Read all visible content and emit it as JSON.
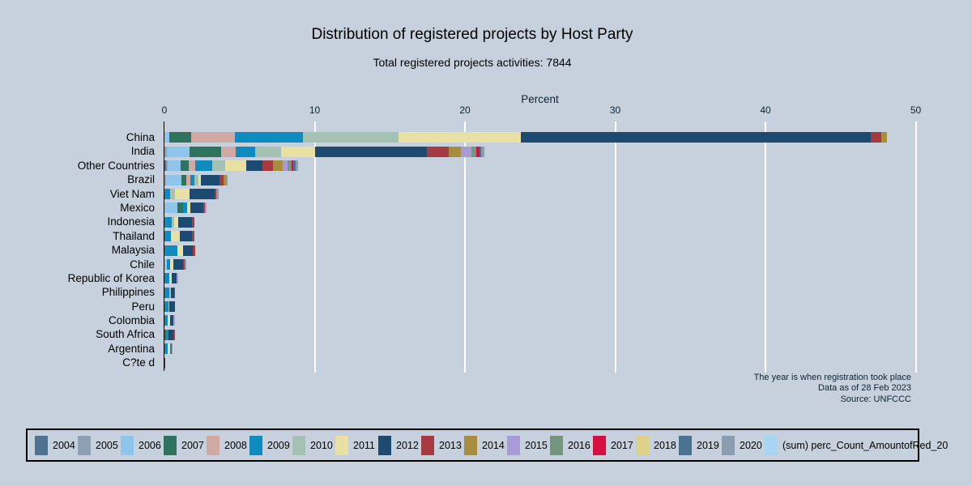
{
  "background": "#c6d1dd",
  "chart_data": {
    "type": "bar",
    "orientation": "horizontal-stacked",
    "title": "Distribution of registered projects by Host Party",
    "subtitle": "Total registered projects activities: 7844",
    "xlabel": "Percent",
    "xlim": [
      0,
      50
    ],
    "x_ticks": [
      0,
      10,
      20,
      30,
      40,
      50
    ],
    "grid": "white vertical gridlines at each tick",
    "legend_position": "bottom",
    "colors": {
      "2004": "#4d7391",
      "2005": "#8fa0b4",
      "2006": "#8ec5ec",
      "2007": "#2f735f",
      "2008": "#d2a8a3",
      "2009": "#0e8cbf",
      "2010": "#a4c2b3",
      "2011": "#e8e1a3",
      "2012": "#1d4a70",
      "2013": "#a53b41",
      "2014": "#a68e3e",
      "2015": "#a89bd8",
      "2016": "#74967f",
      "2017": "#d50f3f",
      "2018": "#ddd189",
      "2019": "#4a7392",
      "2020": "#8c9db1",
      "sum": "#a7d5f3"
    },
    "legend_entries": [
      {
        "key": "2004",
        "label": "2004"
      },
      {
        "key": "2005",
        "label": "2005"
      },
      {
        "key": "2006",
        "label": "2006"
      },
      {
        "key": "2007",
        "label": "2007"
      },
      {
        "key": "2008",
        "label": "2008"
      },
      {
        "key": "2009",
        "label": "2009"
      },
      {
        "key": "2010",
        "label": "2010"
      },
      {
        "key": "2011",
        "label": "2011"
      },
      {
        "key": "2012",
        "label": "2012"
      },
      {
        "key": "2013",
        "label": "2013"
      },
      {
        "key": "2014",
        "label": "2014"
      },
      {
        "key": "2015",
        "label": "2015"
      },
      {
        "key": "2016",
        "label": "2016"
      },
      {
        "key": "2017",
        "label": "2017"
      },
      {
        "key": "2018",
        "label": "2018"
      },
      {
        "key": "2019",
        "label": "2019"
      },
      {
        "key": "2020",
        "label": "2020"
      },
      {
        "key": "sum",
        "label": "(sum) perc_Count_AmountofRed_20"
      }
    ],
    "rows": [
      {
        "label": "China",
        "total_pct": 48.1,
        "segments": [
          [
            "2006",
            0.3
          ],
          [
            "2007",
            1.5
          ],
          [
            "2008",
            2.9
          ],
          [
            "2009",
            4.5
          ],
          [
            "2010",
            6.4
          ],
          [
            "2011",
            8.1
          ],
          [
            "2012",
            23.3
          ],
          [
            "2013",
            0.7
          ],
          [
            "2014",
            0.4
          ]
        ]
      },
      {
        "label": "India",
        "total_pct": 21.3,
        "segments": [
          [
            "2005",
            0.15
          ],
          [
            "2006",
            1.5
          ],
          [
            "2007",
            2.1
          ],
          [
            "2008",
            1.0
          ],
          [
            "2009",
            1.3
          ],
          [
            "2010",
            1.7
          ],
          [
            "2011",
            2.3
          ],
          [
            "2012",
            7.4
          ],
          [
            "2013",
            1.45
          ],
          [
            "2014",
            0.85
          ],
          [
            "2015",
            0.7
          ],
          [
            "2016",
            0.3
          ],
          [
            "2017",
            0.25
          ],
          [
            "2019",
            0.1
          ],
          [
            "2020",
            0.2
          ]
        ]
      },
      {
        "label": "Other Countries",
        "total_pct": 8.9,
        "segments": [
          [
            "2004",
            0.1
          ],
          [
            "2005",
            0.1
          ],
          [
            "2006",
            0.9
          ],
          [
            "2007",
            0.5
          ],
          [
            "2008",
            0.45
          ],
          [
            "2009",
            1.15
          ],
          [
            "2010",
            0.85
          ],
          [
            "2011",
            1.4
          ],
          [
            "2012",
            1.1
          ],
          [
            "2013",
            0.7
          ],
          [
            "2014",
            0.65
          ],
          [
            "2015",
            0.3
          ],
          [
            "2016",
            0.25
          ],
          [
            "2017",
            0.15
          ],
          [
            "2019",
            0.15
          ],
          [
            "2020",
            0.15
          ]
        ]
      },
      {
        "label": "Brazil",
        "total_pct": 4.2,
        "segments": [
          [
            "2005",
            0.1
          ],
          [
            "2006",
            1.05
          ],
          [
            "2007",
            0.3
          ],
          [
            "2008",
            0.3
          ],
          [
            "2009",
            0.27
          ],
          [
            "2010",
            0.27
          ],
          [
            "2011",
            0.16
          ],
          [
            "2012",
            1.2
          ],
          [
            "2013",
            0.27
          ],
          [
            "2014",
            0.16
          ],
          [
            "2020",
            0.11
          ]
        ]
      },
      {
        "label": "Viet Nam",
        "total_pct": 3.6,
        "segments": [
          [
            "2009",
            0.38
          ],
          [
            "2010",
            0.32
          ],
          [
            "2011",
            0.95
          ],
          [
            "2012",
            1.7
          ],
          [
            "2013",
            0.1
          ],
          [
            "2020",
            0.16
          ]
        ]
      },
      {
        "label": "Mexico",
        "total_pct": 2.8,
        "segments": [
          [
            "2006",
            0.86
          ],
          [
            "2007",
            0.38
          ],
          [
            "2009",
            0.27
          ],
          [
            "2011",
            0.2
          ],
          [
            "2012",
            0.86
          ],
          [
            "2013",
            0.11
          ],
          [
            "2015",
            0.11
          ]
        ]
      },
      {
        "label": "Indonesia",
        "total_pct": 2.0,
        "segments": [
          [
            "2009",
            0.5
          ],
          [
            "2010",
            0.16
          ],
          [
            "2011",
            0.27
          ],
          [
            "2012",
            0.9
          ],
          [
            "2013",
            0.16
          ]
        ]
      },
      {
        "label": "Thailand",
        "total_pct": 2.0,
        "segments": [
          [
            "2009",
            0.43
          ],
          [
            "2011",
            0.6
          ],
          [
            "2012",
            0.8
          ],
          [
            "2013",
            0.16
          ]
        ]
      },
      {
        "label": "Malaysia",
        "total_pct": 2.0,
        "segments": [
          [
            "2009",
            0.85
          ],
          [
            "2011",
            0.38
          ],
          [
            "2012",
            0.65
          ],
          [
            "2013",
            0.16
          ]
        ]
      },
      {
        "label": "Chile",
        "total_pct": 1.45,
        "segments": [
          [
            "2006",
            0.16
          ],
          [
            "2009",
            0.22
          ],
          [
            "2011",
            0.22
          ],
          [
            "2012",
            0.65
          ],
          [
            "2013",
            0.11
          ],
          [
            "2020",
            0.11
          ]
        ]
      },
      {
        "label": "Republic of Korea",
        "total_pct": 0.9,
        "segments": [
          [
            "2009",
            0.32
          ],
          [
            "2011",
            0.16
          ],
          [
            "2012",
            0.32
          ],
          [
            "2015",
            0.11
          ]
        ]
      },
      {
        "label": "Philippines",
        "total_pct": 0.7,
        "segments": [
          [
            "2009",
            0.32
          ],
          [
            "2010",
            0.11
          ],
          [
            "2012",
            0.22
          ],
          [
            "2013",
            0.05
          ]
        ]
      },
      {
        "label": "Peru",
        "total_pct": 0.7,
        "segments": [
          [
            "2009",
            0.27
          ],
          [
            "2010",
            0.05
          ],
          [
            "2012",
            0.38
          ]
        ]
      },
      {
        "label": "Colombia",
        "total_pct": 0.7,
        "segments": [
          [
            "2009",
            0.22
          ],
          [
            "2011",
            0.16
          ],
          [
            "2012",
            0.22
          ],
          [
            "2015",
            0.11
          ]
        ]
      },
      {
        "label": "South Africa",
        "total_pct": 0.7,
        "segments": [
          [
            "2007",
            0.11
          ],
          [
            "2009",
            0.16
          ],
          [
            "2012",
            0.32
          ],
          [
            "2013",
            0.11
          ]
        ]
      },
      {
        "label": "Argentina",
        "total_pct": 0.55,
        "segments": [
          [
            "2009",
            0.22
          ],
          [
            "2011",
            0.16
          ],
          [
            "2019",
            0.11
          ],
          [
            "2020",
            0.05
          ]
        ]
      },
      {
        "label": "C?te d",
        "total_pct": 0.05,
        "segments": [
          [
            "2012",
            0.05
          ]
        ]
      }
    ],
    "notes": [
      "The year is when registration took place",
      "Data as of 28 Feb 2023",
      "Source: UNFCCC"
    ]
  }
}
